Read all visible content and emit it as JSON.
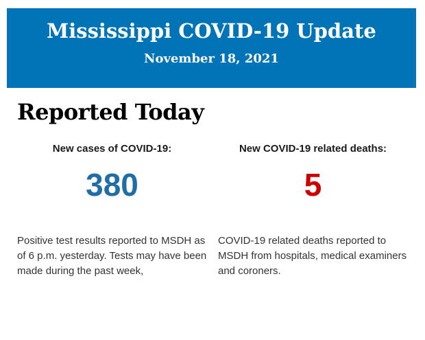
{
  "banner": {
    "title": "Mississippi COVID-19 Update",
    "date": "November 18, 2021",
    "background_color": "#0074b7",
    "text_color": "#ffffff"
  },
  "section": {
    "heading": "Reported Today"
  },
  "stats": [
    {
      "label": "New cases of COVID-19:",
      "value": "380",
      "value_color": "#1f6ea5",
      "description": "Positive test results reported to MSDH as of 6 p.m. yesterday. Tests may have been made during the past week,"
    },
    {
      "label": "New COVID-19 related deaths:",
      "value": "5",
      "value_color": "#cc0000",
      "description": "COVID-19 related deaths reported to MSDH from hospitals, medical examiners and coroners."
    }
  ]
}
